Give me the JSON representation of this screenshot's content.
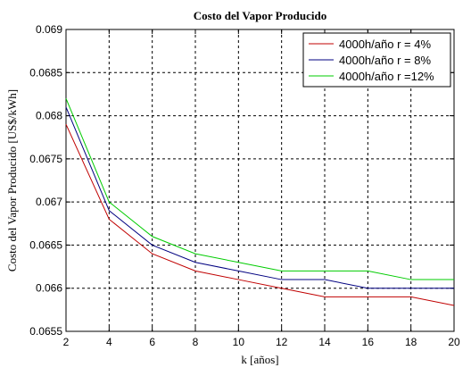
{
  "chart_data": {
    "type": "line",
    "title": "Costo del Vapor Producido",
    "xlabel": "k [años]",
    "ylabel": "Costo del Vapor Producido [US$/kWh]",
    "xlim": [
      2,
      20
    ],
    "ylim": [
      0.0655,
      0.069
    ],
    "xticks": [
      2,
      4,
      6,
      8,
      10,
      12,
      14,
      16,
      18,
      20
    ],
    "xtick_labels": [
      "2",
      "4",
      "6",
      "8",
      "10",
      "12",
      "14",
      "16",
      "18",
      "20"
    ],
    "yticks": [
      0.0655,
      0.066,
      0.0665,
      0.067,
      0.0675,
      0.068,
      0.0685,
      0.069
    ],
    "ytick_labels": [
      "0.0655",
      "0.066",
      "0.0665",
      "0.067",
      "0.0675",
      "0.068",
      "0.0685",
      "0.069"
    ],
    "grid": true,
    "legend_position": "top-right",
    "x": [
      2,
      4,
      6,
      8,
      10,
      12,
      14,
      16,
      18,
      20
    ],
    "series": [
      {
        "name": "4000h/año r = 4%",
        "color": "#c00000",
        "values": [
          0.0679,
          0.0668,
          0.0664,
          0.0662,
          0.0661,
          0.066,
          0.0659,
          0.0659,
          0.0659,
          0.0658
        ]
      },
      {
        "name": "4000h/año r = 8%",
        "color": "#000080",
        "values": [
          0.0681,
          0.0669,
          0.0665,
          0.0663,
          0.0662,
          0.0661,
          0.0661,
          0.066,
          0.066,
          0.066
        ]
      },
      {
        "name": "4000h/año r =12%",
        "color": "#00cc00",
        "values": [
          0.0682,
          0.067,
          0.0666,
          0.0664,
          0.0663,
          0.0662,
          0.0662,
          0.0662,
          0.0661,
          0.0661
        ]
      }
    ]
  }
}
